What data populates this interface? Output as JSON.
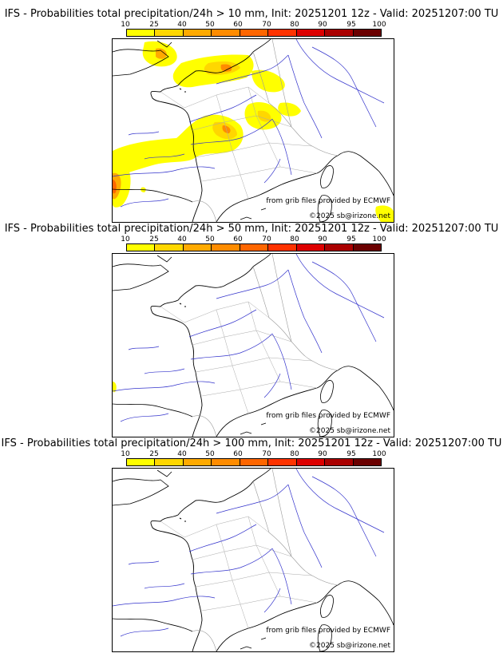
{
  "scale": {
    "labels": [
      "10",
      "25",
      "40",
      "50",
      "60",
      "70",
      "80",
      "90",
      "95",
      "100"
    ],
    "colors": [
      "#ffff00",
      "#ffd700",
      "#ffaa00",
      "#ff8c00",
      "#ff6600",
      "#ff3300",
      "#dd0000",
      "#aa0000",
      "#6b0000"
    ]
  },
  "panels": [
    {
      "title": "IFS - Probabilities total precipitation/24h > 10 mm, Init: 20251201 12z - Valid: 20251207:00 TU",
      "source_credit": "from grib files provided by ECMWF",
      "copyright": "©2025 sb@irizone.net"
    },
    {
      "title": "IFS - Probabilities total precipitation/24h > 50 mm, Init: 20251201 12z - Valid: 20251207:00 TU",
      "source_credit": "from grib files provided by ECMWF",
      "copyright": "©2025 sb@irizone.net"
    },
    {
      "title": "IFS - Probabilities total precipitation/24h > 100 mm, Init: 20251201 12z - Valid: 20251207:00 TU",
      "source_credit": "from grib files provided by ECMWF",
      "copyright": "©2025 sb@irizone.net"
    }
  ],
  "colors": {
    "coastline": "#000000",
    "river": "#3333cc",
    "border": "#999999"
  }
}
